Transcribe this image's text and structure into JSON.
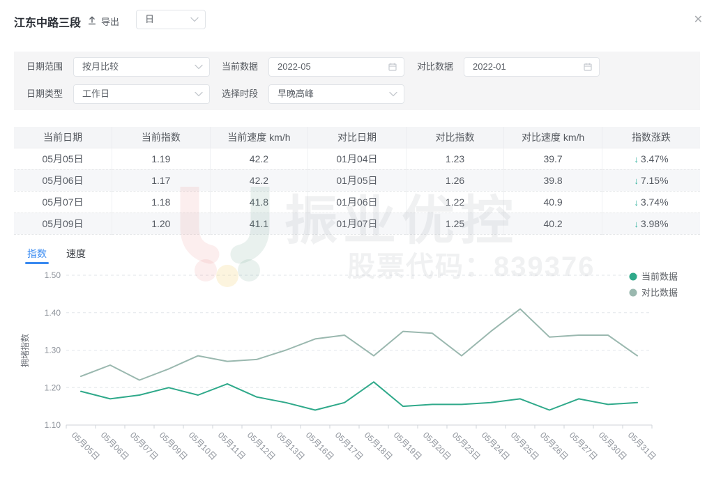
{
  "header": {
    "title": "江东中路三段",
    "export_label": "导出",
    "period_select_value": "日",
    "close_glyph": "✕"
  },
  "filters": {
    "row1": [
      {
        "label": "日期范围",
        "type": "select",
        "value": "按月比较"
      },
      {
        "label": "当前数据",
        "type": "date",
        "value": "2022-05"
      },
      {
        "label": "对比数据",
        "type": "date",
        "value": "2022-01"
      }
    ],
    "row2": [
      {
        "label": "日期类型",
        "type": "select",
        "value": "工作日"
      },
      {
        "label": "选择时段",
        "type": "select",
        "value": "早晚高峰"
      }
    ]
  },
  "table": {
    "headers": [
      "当前日期",
      "当前指数",
      "当前速度 km/h",
      "对比日期",
      "对比指数",
      "对比速度 km/h",
      "指数涨跌"
    ],
    "rows": [
      [
        "05月05日",
        "1.19",
        "42.2",
        "01月04日",
        "1.23",
        "39.7",
        "3.47%"
      ],
      [
        "05月06日",
        "1.17",
        "42.2",
        "01月05日",
        "1.26",
        "39.8",
        "7.15%"
      ],
      [
        "05月07日",
        "1.18",
        "41.8",
        "01月06日",
        "1.22",
        "40.9",
        "3.74%"
      ],
      [
        "05月09日",
        "1.20",
        "41.1",
        "01月07日",
        "1.25",
        "40.2",
        "3.98%"
      ]
    ],
    "change_arrow": "↓",
    "change_direction": "down"
  },
  "tabs": [
    {
      "label": "指数",
      "active": true
    },
    {
      "label": "速度",
      "active": false
    }
  ],
  "watermark": {
    "brand": "振业优控",
    "stock_code": "股票代码：839376"
  },
  "chart_data": {
    "type": "line",
    "title": "",
    "xlabel": "",
    "ylabel": "拥堵指数",
    "ylim": [
      1.1,
      1.5
    ],
    "yticks": [
      "1.10",
      "1.20",
      "1.30",
      "1.40",
      "1.50"
    ],
    "grid": "dashed-horizontal",
    "legend_position": "top-right",
    "categories": [
      "05月05日",
      "05月06日",
      "05月07日",
      "05月09日",
      "05月10日",
      "05月11日",
      "05月12日",
      "05月13日",
      "05月16日",
      "05月17日",
      "05月18日",
      "05月19日",
      "05月20日",
      "05月23日",
      "05月24日",
      "05月25日",
      "05月26日",
      "05月27日",
      "05月30日",
      "05月31日"
    ],
    "series": [
      {
        "name": "当前数据",
        "color": "#2fa98a",
        "values": [
          1.19,
          1.17,
          1.18,
          1.2,
          1.18,
          1.21,
          1.175,
          1.16,
          1.14,
          1.16,
          1.215,
          1.15,
          1.155,
          1.155,
          1.16,
          1.17,
          1.14,
          1.17,
          1.155,
          1.16
        ]
      },
      {
        "name": "对比数据",
        "color": "#9ab8af",
        "values": [
          1.23,
          1.26,
          1.22,
          1.25,
          1.285,
          1.27,
          1.275,
          1.3,
          1.33,
          1.34,
          1.285,
          1.35,
          1.345,
          1.285,
          1.35,
          1.41,
          1.335,
          1.34,
          1.34,
          1.285
        ]
      }
    ]
  },
  "icons": {
    "export": "upload-icon",
    "period_chevron": "chevron-down-icon",
    "select_chevron": "chevron-down-icon",
    "date": "calendar-icon",
    "close": "close-icon"
  },
  "colors": {
    "accent_blue": "#3a8af0",
    "current_series": "#2fa98a",
    "compare_series": "#9ab8af",
    "down_arrow": "#35b3a0",
    "panel_bg": "#f5f5f6",
    "table_header_bg": "#f4f5f7"
  }
}
